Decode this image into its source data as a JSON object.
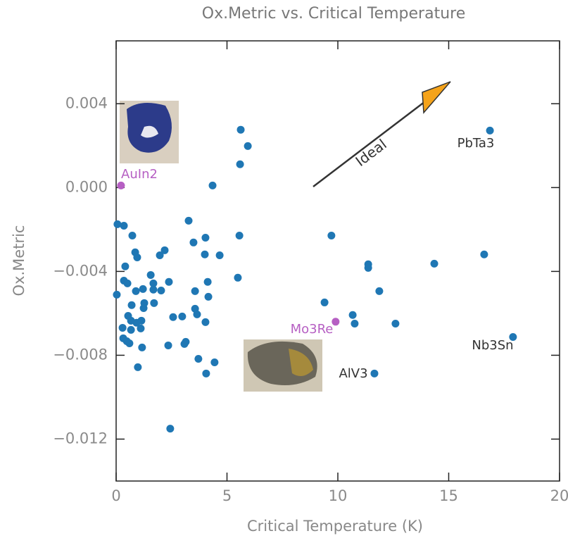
{
  "chart_data": {
    "type": "scatter",
    "title": "Ox.Metric vs. Critical Temperature",
    "x_label": "Critical Temperature (K)",
    "y_label": "Ox.Metric",
    "xlim": [
      0,
      20
    ],
    "ylim": [
      -0.014,
      0.007
    ],
    "xticks": [
      0,
      5,
      10,
      15,
      20
    ],
    "yticks": [
      {
        "value": -0.012,
        "label": "−0.012"
      },
      {
        "value": -0.008,
        "label": "−0.008"
      },
      {
        "value": -0.004,
        "label": "−0.004"
      },
      {
        "value": 0,
        "label": "0.000"
      },
      {
        "value": 0.004,
        "label": "0.004"
      }
    ],
    "series": [
      {
        "color": "#1f77b4",
        "x": [
          5.62,
          5.94,
          5.59,
          4.35,
          16.86,
          17.9,
          11.65,
          0.06,
          0.35,
          0.73,
          3.27,
          3.49,
          4.03,
          5.56,
          4.0,
          4.67,
          9.71,
          0.41,
          0.86,
          0.95,
          2.19,
          1.97,
          11.37,
          11.37,
          14.35,
          16.6,
          0.03,
          0.35,
          0.51,
          1.21,
          1.56,
          1.68,
          1.68,
          2.03,
          2.38,
          5.49,
          3.56,
          4.13,
          4.16,
          11.87,
          0.7,
          1.24,
          0.89,
          0.54,
          1.27,
          1.71,
          3.56,
          3.65,
          9.4,
          10.67,
          10.76,
          12.6,
          4.03,
          2.57,
          2.98,
          0.67,
          0.92,
          1.14,
          1.11,
          0.29,
          0.67,
          0.32,
          0.48,
          0.6,
          1.17,
          2.35,
          3.08,
          3.14,
          3.71,
          4.44,
          4.06,
          0.98,
          2.44
        ],
        "values": [
          0.00276,
          0.00198,
          0.00111,
          0.0001,
          0.00272,
          -0.00713,
          -0.00887,
          -0.00175,
          -0.00182,
          -0.00229,
          -0.00158,
          -0.00262,
          -0.00239,
          -0.00229,
          -0.00319,
          -0.00323,
          -0.00229,
          -0.00376,
          -0.00309,
          -0.00333,
          -0.00299,
          -0.00323,
          -0.00366,
          -0.00383,
          -0.00363,
          -0.00319,
          -0.00511,
          -0.00444,
          -0.00457,
          -0.00484,
          -0.00417,
          -0.00457,
          -0.00487,
          -0.00491,
          -0.0045,
          -0.0043,
          -0.00494,
          -0.0045,
          -0.00521,
          -0.00494,
          -0.00561,
          -0.00575,
          -0.00494,
          -0.00612,
          -0.00551,
          -0.00551,
          -0.00578,
          -0.00605,
          -0.00548,
          -0.00608,
          -0.00649,
          -0.00649,
          -0.00642,
          -0.00618,
          -0.00615,
          -0.00635,
          -0.00645,
          -0.00635,
          -0.00672,
          -0.00669,
          -0.00679,
          -0.00719,
          -0.00733,
          -0.00743,
          -0.00763,
          -0.00753,
          -0.00746,
          -0.00736,
          -0.00817,
          -0.00834,
          -0.00887,
          -0.00857,
          -0.0115
        ]
      },
      {
        "color": "#b65fc3",
        "x": [
          0.22,
          9.9
        ],
        "values": [
          0.0001,
          -0.0064
        ]
      }
    ],
    "annotations": [
      "PbTa3",
      "Nb3Sn",
      "AlV3",
      "AuIn2",
      "Mo3Re",
      "Ideal"
    ]
  }
}
